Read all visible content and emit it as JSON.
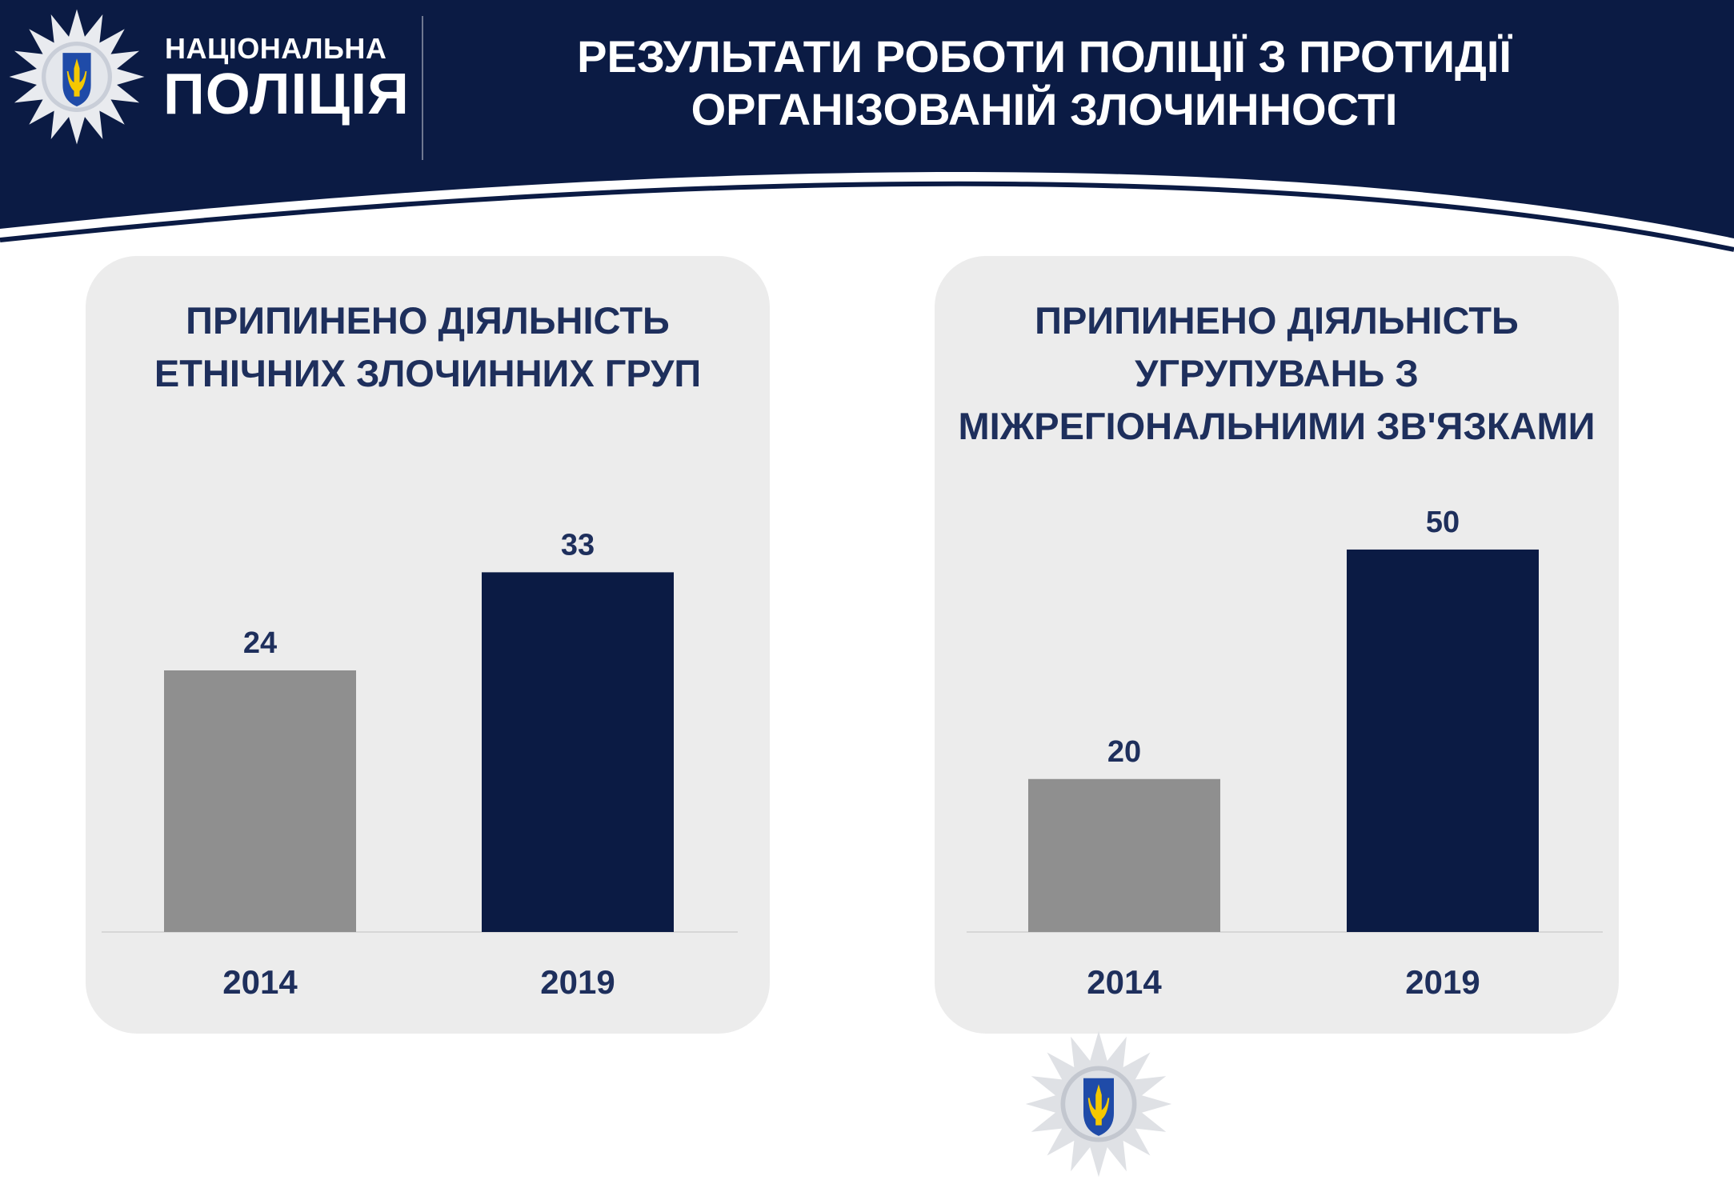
{
  "header": {
    "brand_line1": "НАЦІОНАЛЬНА",
    "brand_line2": "ПОЛІЦІЯ",
    "title": "РЕЗУЛЬТАТИ РОБОТИ ПОЛІЦІЇ З ПРОТИДІЇ ОРГАНІЗОВАНІЙ ЗЛОЧИННОСТІ"
  },
  "colors": {
    "navy": "#0b1b44",
    "title_text": "#1e2f5c",
    "panel_bg": "#ececec",
    "bar_2014": "#8f8f8f",
    "bar_2019": "#0b1b44"
  },
  "icons": {
    "header_logo": "police-star-badge-icon",
    "footer_logo": "police-star-badge-icon"
  },
  "chart_data": [
    {
      "type": "bar",
      "title": "ПРИПИНЕНО ДІЯЛЬНІСТЬ ЕТНІЧНИХ ЗЛОЧИННИХ ГРУП",
      "categories": [
        "2014",
        "2019"
      ],
      "values": [
        24,
        33
      ],
      "data_labels": [
        "24",
        "33"
      ],
      "bar_colors": [
        "#8f8f8f",
        "#0b1b44"
      ],
      "ylim": [
        0,
        40
      ],
      "grid": false,
      "legend": "none"
    },
    {
      "type": "bar",
      "title": "ПРИПИНЕНО ДІЯЛЬНІСТЬ УГРУПУВАНЬ З МІЖРЕГІОНАЛЬНИМИ ЗВ'ЯЗКАМИ",
      "categories": [
        "2014",
        "2019"
      ],
      "values": [
        20,
        50
      ],
      "data_labels": [
        "20",
        "50"
      ],
      "bar_colors": [
        "#8f8f8f",
        "#0b1b44"
      ],
      "ylim": [
        0,
        57
      ],
      "grid": false,
      "legend": "none"
    }
  ]
}
